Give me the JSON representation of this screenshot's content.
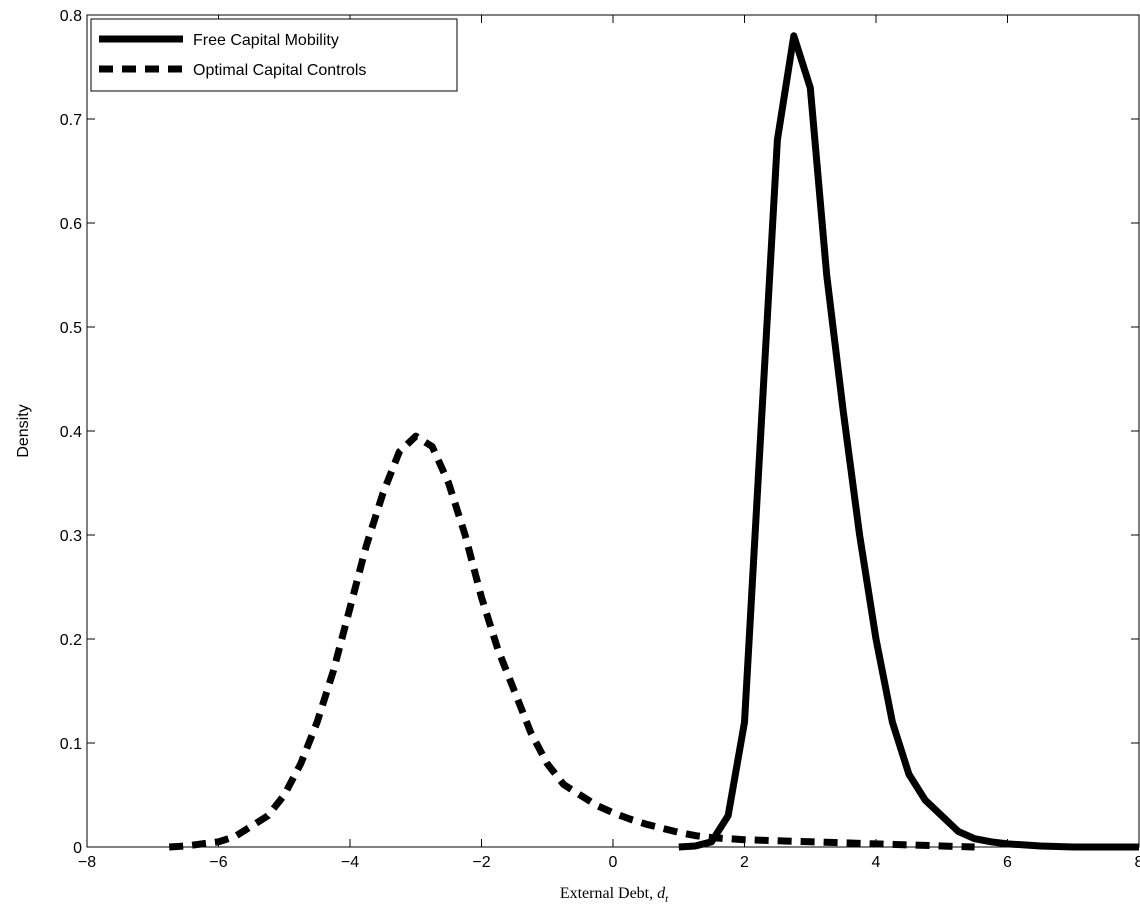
{
  "chart_data": {
    "type": "line",
    "xlabel": {
      "text": "External Debt, ",
      "symbol": "d",
      "subscript": "t"
    },
    "ylabel": "Density",
    "x": [
      -7,
      -6.75,
      -6.5,
      -6.25,
      -6,
      -5.75,
      -5.5,
      -5.25,
      -5,
      -4.75,
      -4.5,
      -4.25,
      -4,
      -3.75,
      -3.5,
      -3.25,
      -3,
      -2.75,
      -2.5,
      -2.25,
      -2,
      -1.75,
      -1.5,
      -1.25,
      -1,
      -0.75,
      -0.5,
      -0.25,
      0,
      0.25,
      0.5,
      0.75,
      1,
      1.25,
      1.5,
      1.75,
      2,
      2.25,
      2.5,
      2.75,
      3,
      3.25,
      3.5,
      3.75,
      4,
      4.25,
      4.5,
      4.75,
      5,
      5.25,
      5.5,
      5.75,
      6,
      6.25,
      6.5,
      6.75,
      7,
      7.25,
      7.5,
      7.75,
      8
    ],
    "series": [
      {
        "name": "Free Capital Mobility",
        "color": "#000000",
        "dash": false,
        "values": [
          null,
          null,
          null,
          null,
          null,
          null,
          null,
          null,
          null,
          null,
          null,
          null,
          null,
          null,
          null,
          null,
          null,
          null,
          null,
          null,
          null,
          null,
          null,
          null,
          null,
          null,
          null,
          null,
          null,
          null,
          null,
          null,
          0,
          0.001,
          0.005,
          0.03,
          0.12,
          0.4,
          0.68,
          0.78,
          0.73,
          0.55,
          0.42,
          0.3,
          0.2,
          0.12,
          0.07,
          0.045,
          0.03,
          0.015,
          0.008,
          0.005,
          0.003,
          0.002,
          0.001,
          0.0005,
          0,
          0,
          0,
          0,
          0
        ]
      },
      {
        "name": "Optimal Capital Controls",
        "color": "#000000",
        "dash": true,
        "values": [
          null,
          0,
          0.001,
          0.003,
          0.005,
          0.01,
          0.02,
          0.03,
          0.05,
          0.08,
          0.12,
          0.17,
          0.23,
          0.29,
          0.34,
          0.38,
          0.395,
          0.385,
          0.35,
          0.3,
          0.24,
          0.19,
          0.15,
          0.11,
          0.08,
          0.06,
          0.05,
          0.04,
          0.033,
          0.027,
          0.022,
          0.018,
          0.014,
          0.011,
          0.009,
          0.008,
          0.007,
          0.0065,
          0.006,
          0.0055,
          0.005,
          0.0045,
          0.004,
          0.0035,
          0.003,
          0.0025,
          0.002,
          0.0015,
          0.001,
          0.0005,
          0,
          null,
          null,
          null,
          null,
          null,
          null,
          null,
          null,
          null,
          null
        ]
      }
    ],
    "xlim": [
      -8,
      8
    ],
    "xticks": [
      {
        "value": -8,
        "label": "−8"
      },
      {
        "value": -6,
        "label": "−6"
      },
      {
        "value": -4,
        "label": "−4"
      },
      {
        "value": -2,
        "label": "−2"
      },
      0,
      2,
      4,
      6,
      8
    ],
    "ylim": [
      0,
      0.8
    ],
    "yticks": [
      0,
      0.1,
      0.2,
      0.3,
      0.4,
      0.5,
      0.6,
      0.7,
      0.8
    ],
    "legend": "upper-left"
  }
}
